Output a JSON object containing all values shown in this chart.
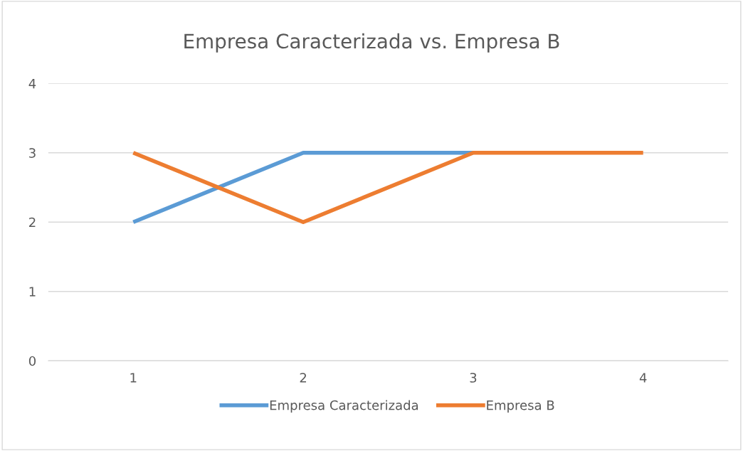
{
  "chart_data": {
    "type": "line",
    "title": "Empresa Caracterizada vs. Empresa B",
    "categories": [
      "1",
      "2",
      "3",
      "4"
    ],
    "series": [
      {
        "name": "Empresa Caracterizada",
        "color": "#5b9bd5",
        "values": [
          2,
          3,
          3,
          null
        ]
      },
      {
        "name": "Empresa B",
        "color": "#ed7d31",
        "values": [
          3,
          2,
          3,
          3
        ]
      }
    ],
    "ylim": [
      0,
      4
    ],
    "yticks": [
      0,
      1,
      2,
      3,
      4
    ],
    "grid": "y",
    "legend": "bottom",
    "marker": "none",
    "line_style": "solid"
  }
}
